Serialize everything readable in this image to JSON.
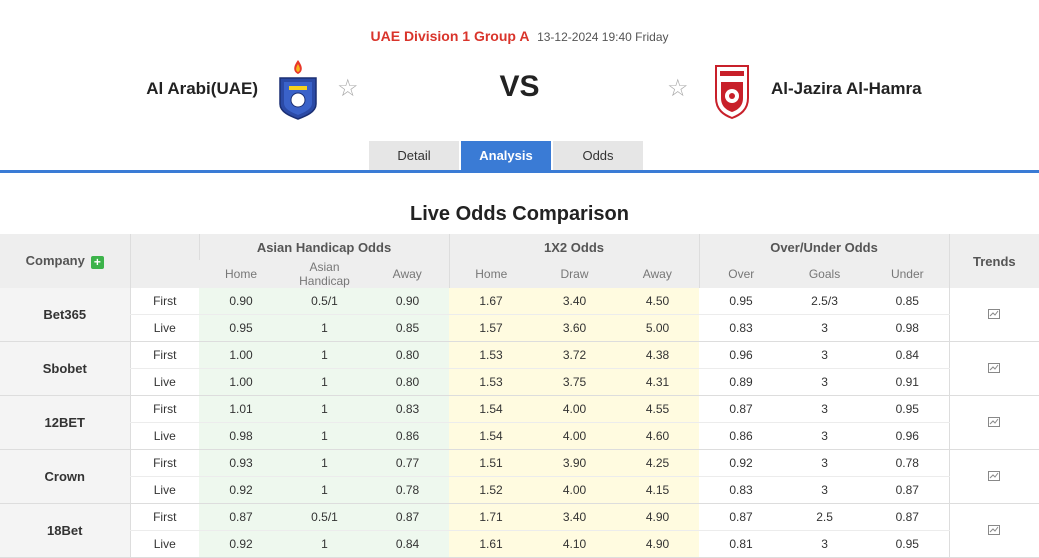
{
  "match": {
    "league": "UAE Division 1 Group A",
    "datetime": "13-12-2024 19:40 Friday",
    "home_team": "Al Arabi(UAE)",
    "away_team": "Al-Jazira Al-Hamra",
    "vs": "VS"
  },
  "tabs": [
    "Detail",
    "Analysis",
    "Odds"
  ],
  "active_tab": "Analysis",
  "section_title": "Live Odds Comparison",
  "table": {
    "company_header": "Company",
    "groups": [
      "Asian Handicap Odds",
      "1X2 Odds",
      "Over/Under Odds"
    ],
    "trends_header": "Trends",
    "subheaders": [
      "Home",
      "Asian Handicap",
      "Away",
      "Home",
      "Draw",
      "Away",
      "Over",
      "Goals",
      "Under"
    ],
    "rows": [
      {
        "company": "Bet365",
        "first": [
          "0.90",
          "0.5/1",
          "0.90",
          "1.67",
          "3.40",
          "4.50",
          "0.95",
          "2.5/3",
          "0.85"
        ],
        "live": [
          "0.95",
          "1",
          "0.85",
          "1.57",
          "3.60",
          "5.00",
          "0.83",
          "3",
          "0.98"
        ]
      },
      {
        "company": "Sbobet",
        "first": [
          "1.00",
          "1",
          "0.80",
          "1.53",
          "3.72",
          "4.38",
          "0.96",
          "3",
          "0.84"
        ],
        "live": [
          "1.00",
          "1",
          "0.80",
          "1.53",
          "3.75",
          "4.31",
          "0.89",
          "3",
          "0.91"
        ]
      },
      {
        "company": "12BET",
        "first": [
          "1.01",
          "1",
          "0.83",
          "1.54",
          "4.00",
          "4.55",
          "0.87",
          "3",
          "0.95"
        ],
        "live": [
          "0.98",
          "1",
          "0.86",
          "1.54",
          "4.00",
          "4.60",
          "0.86",
          "3",
          "0.96"
        ]
      },
      {
        "company": "Crown",
        "first": [
          "0.93",
          "1",
          "0.77",
          "1.51",
          "3.90",
          "4.25",
          "0.92",
          "3",
          "0.78"
        ],
        "live": [
          "0.92",
          "1",
          "0.78",
          "1.52",
          "4.00",
          "4.15",
          "0.83",
          "3",
          "0.87"
        ]
      },
      {
        "company": "18Bet",
        "first": [
          "0.87",
          "0.5/1",
          "0.87",
          "1.71",
          "3.40",
          "4.90",
          "0.87",
          "2.5",
          "0.87"
        ],
        "live": [
          "0.92",
          "1",
          "0.84",
          "1.61",
          "4.10",
          "4.90",
          "0.81",
          "3",
          "0.95"
        ]
      }
    ],
    "stage_labels": {
      "first": "First",
      "live": "Live"
    }
  },
  "colors": {
    "accent": "#3a7bd5",
    "league": "#d9342b",
    "ah_bg": "#eef8ee",
    "x12_bg": "#fffbe0",
    "plus": "#3cb34a"
  },
  "icons": {
    "favorite": "star-outline-icon",
    "trend": "chart-line-icon",
    "add": "plus-icon"
  }
}
